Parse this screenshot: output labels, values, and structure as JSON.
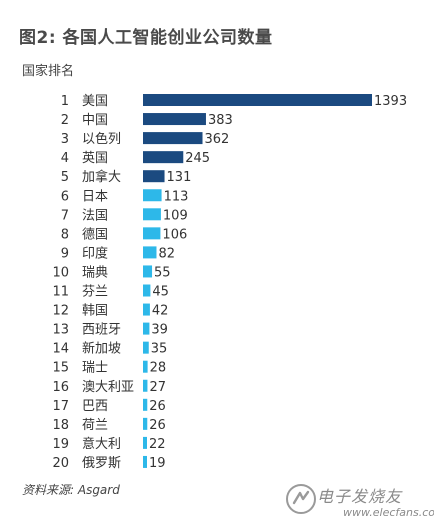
{
  "title": "图2: 各国人工智能创业公司数量",
  "subtitle": "国家排名",
  "source": "资料来源: Asgard",
  "watermark": {
    "text": "电子发烧友",
    "url": "www.elecfans.com"
  },
  "colors": {
    "top_bar": "#1b4a80",
    "other_bar": "#2db8e9"
  },
  "chart_data": {
    "type": "bar",
    "orientation": "horizontal",
    "ranks": [
      1,
      2,
      3,
      4,
      5,
      6,
      7,
      8,
      9,
      10,
      11,
      12,
      13,
      14,
      15,
      16,
      17,
      18,
      19,
      20
    ],
    "categories": [
      "美国",
      "中国",
      "以色列",
      "英国",
      "加拿大",
      "日本",
      "法国",
      "德国",
      "印度",
      "瑞典",
      "芬兰",
      "韩国",
      "西班牙",
      "新加坡",
      "瑞士",
      "澳大利亚",
      "巴西",
      "荷兰",
      "意大利",
      "俄罗斯"
    ],
    "values": [
      1393,
      383,
      362,
      245,
      131,
      113,
      109,
      106,
      82,
      55,
      45,
      42,
      39,
      35,
      28,
      27,
      26,
      26,
      22,
      19
    ],
    "dark_bar_count": 5,
    "xlim": [
      0,
      1393
    ],
    "grid": false,
    "legend": "none"
  }
}
